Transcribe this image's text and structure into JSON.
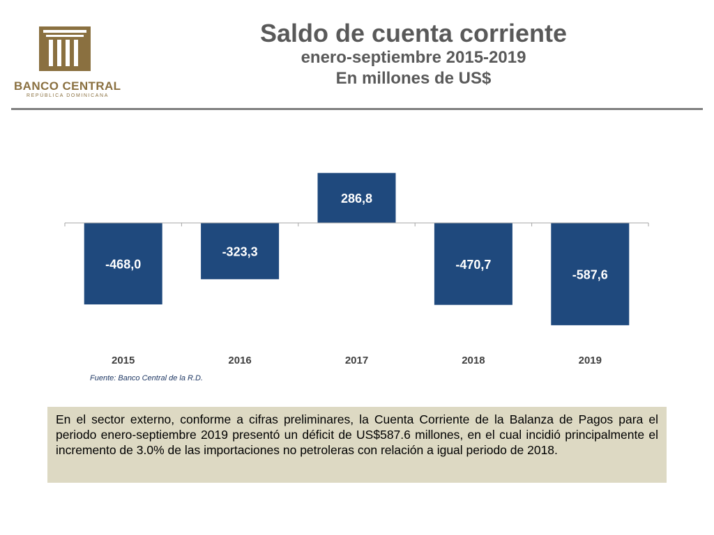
{
  "logo": {
    "icon": "bank-building-icon",
    "name": "BANCO CENTRAL",
    "subname": "REPÚBLICA DOMINICANA",
    "color": "#8a7040"
  },
  "header": {
    "title": "Saldo de cuenta corriente",
    "subtitle_1": "enero-septiembre 2015-2019",
    "subtitle_2": "En millones de US$"
  },
  "chart_data": {
    "type": "bar",
    "categories": [
      "2015",
      "2016",
      "2017",
      "2018",
      "2019"
    ],
    "values": [
      -468.0,
      -323.3,
      286.8,
      -470.7,
      -587.6
    ],
    "data_labels": [
      "-468,0",
      "-323,3",
      "286,8",
      "-470,7",
      "-587,6"
    ],
    "bar_color": "#1f497d",
    "label_color": "#ffffff",
    "title": "",
    "xlabel": "",
    "ylabel": "",
    "ylim": [
      -600,
      300
    ],
    "grid": false,
    "legend": "none"
  },
  "source": "Fuente: Banco Central de la R.D.",
  "note": "En el sector externo, conforme a cifras preliminares, la Cuenta Corriente de la Balanza de Pagos para el periodo enero-septiembre 2019 presentó un déficit de US$587.6 millones, en el cual incidió principalmente el incremento de 3.0% de las importaciones no petroleras con relación a igual periodo de 2018."
}
